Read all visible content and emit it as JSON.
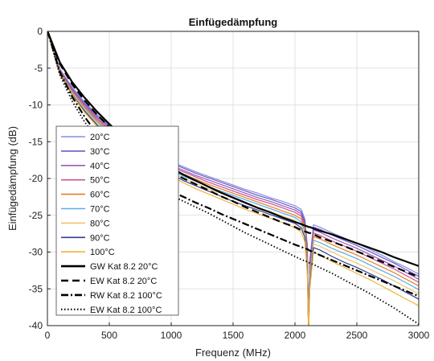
{
  "chart_data": {
    "type": "line",
    "title": "Einfügedämpfung",
    "xlabel": "Frequenz (MHz)",
    "ylabel": "Einfügedämpfung (dB)",
    "xlim": [
      0,
      3000
    ],
    "ylim": [
      -40,
      0
    ],
    "xticks": [
      0,
      500,
      1000,
      1500,
      2000,
      2500,
      3000
    ],
    "yticks": [
      0,
      -5,
      -10,
      -15,
      -20,
      -25,
      -30,
      -35,
      -40
    ],
    "xtick_labels": [
      "0",
      "500",
      "1000",
      "1500",
      "2000",
      "2500",
      "3000"
    ],
    "ytick_labels": [
      "0",
      "-5",
      "-10",
      "-15",
      "-20",
      "-25",
      "-30",
      "-35",
      "-40"
    ],
    "grid": true,
    "legend_position": "bottom-left",
    "x": [
      1,
      100,
      200,
      300,
      400,
      500,
      600,
      700,
      800,
      900,
      1000,
      1100,
      1200,
      1300,
      1400,
      1500,
      1600,
      1700,
      1800,
      1900,
      2000,
      2050,
      2080,
      2100,
      2110,
      2120,
      2150,
      2200,
      2300,
      2400,
      2500,
      2600,
      2700,
      2800,
      2900,
      3000
    ],
    "series": [
      {
        "name": "20°C",
        "color": "#8a8fd6",
        "style": "solid",
        "width": 1.2,
        "values": [
          0,
          -5.1,
          -7.6,
          -9.6,
          -11.3,
          -12.7,
          -14.0,
          -15.1,
          -16.1,
          -16.9,
          -17.7,
          -18.4,
          -19.1,
          -19.7,
          -20.3,
          -20.9,
          -21.5,
          -22.0,
          -22.6,
          -23.1,
          -23.7,
          -24.2,
          -25.5,
          -29.0,
          -41.0,
          -31.0,
          -26.3,
          -26.6,
          -27.4,
          -28.1,
          -28.8,
          -29.6,
          -30.4,
          -31.3,
          -32.1,
          -33.0
        ]
      },
      {
        "name": "30°C",
        "color": "#6a5acd",
        "style": "solid",
        "width": 1.2,
        "values": [
          0,
          -5.2,
          -7.8,
          -9.8,
          -11.5,
          -12.9,
          -14.2,
          -15.3,
          -16.3,
          -17.1,
          -17.9,
          -18.6,
          -19.3,
          -19.9,
          -20.5,
          -21.1,
          -21.7,
          -22.3,
          -22.8,
          -23.4,
          -24.0,
          -24.5,
          -25.8,
          -29.5,
          -41.0,
          -31.5,
          -26.6,
          -26.9,
          -27.7,
          -28.4,
          -29.1,
          -29.9,
          -30.7,
          -31.5,
          -32.4,
          -33.3
        ]
      },
      {
        "name": "40°C",
        "color": "#9b59b6",
        "style": "solid",
        "width": 1.2,
        "values": [
          0,
          -5.3,
          -7.9,
          -9.9,
          -11.7,
          -13.1,
          -14.4,
          -15.5,
          -16.5,
          -17.4,
          -18.2,
          -18.9,
          -19.6,
          -20.2,
          -20.8,
          -21.4,
          -22.0,
          -22.6,
          -23.1,
          -23.7,
          -24.3,
          -24.8,
          -26.1,
          -30.0,
          -41.0,
          -32.0,
          -27.0,
          -27.3,
          -28.1,
          -28.8,
          -29.5,
          -30.3,
          -31.1,
          -31.9,
          -32.8,
          -33.7
        ]
      },
      {
        "name": "50°C",
        "color": "#c7548f",
        "style": "solid",
        "width": 1.2,
        "values": [
          0,
          -5.4,
          -8.0,
          -10.1,
          -11.9,
          -13.3,
          -14.6,
          -15.7,
          -16.7,
          -17.6,
          -18.4,
          -19.1,
          -19.8,
          -20.5,
          -21.1,
          -21.7,
          -22.3,
          -22.9,
          -23.4,
          -24.0,
          -24.6,
          -25.1,
          -26.4,
          -30.5,
          -41.0,
          -32.5,
          -27.4,
          -27.7,
          -28.5,
          -29.2,
          -29.9,
          -30.7,
          -31.5,
          -32.3,
          -33.2,
          -34.1
        ]
      },
      {
        "name": "60°C",
        "color": "#e67e22",
        "style": "solid",
        "width": 1.2,
        "values": [
          0,
          -5.5,
          -8.2,
          -10.3,
          -12.1,
          -13.5,
          -14.8,
          -15.9,
          -16.9,
          -17.8,
          -18.6,
          -19.4,
          -20.1,
          -20.8,
          -21.4,
          -22.0,
          -22.6,
          -23.2,
          -23.8,
          -24.4,
          -25.0,
          -25.5,
          -26.8,
          -31.0,
          -41.0,
          -33.0,
          -27.9,
          -28.2,
          -29.0,
          -29.7,
          -30.4,
          -31.2,
          -32.0,
          -32.8,
          -33.7,
          -34.6
        ]
      },
      {
        "name": "70°C",
        "color": "#5dade2",
        "style": "solid",
        "width": 1.2,
        "values": [
          0,
          -5.6,
          -8.3,
          -10.4,
          -12.3,
          -13.7,
          -15.0,
          -16.1,
          -17.1,
          -18.0,
          -18.9,
          -19.7,
          -20.4,
          -21.1,
          -21.7,
          -22.3,
          -22.9,
          -23.5,
          -24.1,
          -24.7,
          -25.3,
          -25.9,
          -27.2,
          -31.5,
          -41.0,
          -33.5,
          -28.4,
          -28.7,
          -29.5,
          -30.2,
          -30.9,
          -31.7,
          -32.5,
          -33.3,
          -34.2,
          -35.1
        ]
      },
      {
        "name": "80°C",
        "color": "#ecc46e",
        "style": "solid",
        "width": 1.2,
        "values": [
          0,
          -5.7,
          -8.4,
          -10.6,
          -12.5,
          -13.9,
          -15.2,
          -16.3,
          -17.3,
          -18.3,
          -19.2,
          -20.0,
          -20.7,
          -21.4,
          -22.0,
          -22.7,
          -23.3,
          -23.9,
          -24.5,
          -25.1,
          -25.7,
          -26.3,
          -27.6,
          -32.0,
          -41.0,
          -34.0,
          -28.9,
          -29.2,
          -30.0,
          -30.8,
          -31.5,
          -32.3,
          -33.1,
          -33.9,
          -34.8,
          -35.7
        ]
      },
      {
        "name": "90°C",
        "color": "#2c3e91",
        "style": "solid",
        "width": 1.2,
        "values": [
          0,
          -5.8,
          -8.6,
          -10.8,
          -12.7,
          -14.1,
          -15.4,
          -16.5,
          -17.5,
          -18.5,
          -19.4,
          -20.3,
          -21.0,
          -21.7,
          -22.4,
          -23.1,
          -23.7,
          -24.3,
          -24.9,
          -25.5,
          -26.1,
          -26.7,
          -28.0,
          -32.5,
          -41.0,
          -34.5,
          -29.4,
          -29.7,
          -30.6,
          -31.4,
          -32.1,
          -32.9,
          -33.7,
          -34.6,
          -35.5,
          -36.4
        ]
      },
      {
        "name": "100°C",
        "color": "#f0b33a",
        "style": "solid",
        "width": 1.2,
        "values": [
          0,
          -5.9,
          -8.7,
          -11.0,
          -12.9,
          -14.3,
          -15.6,
          -16.7,
          -17.8,
          -18.8,
          -19.7,
          -20.6,
          -21.4,
          -22.1,
          -22.8,
          -23.5,
          -24.2,
          -24.8,
          -25.4,
          -26.0,
          -26.7,
          -27.3,
          -28.6,
          -33.0,
          -41.0,
          -35.0,
          -30.0,
          -30.4,
          -31.3,
          -32.1,
          -32.9,
          -33.7,
          -34.6,
          -35.5,
          -36.4,
          -37.3
        ]
      },
      {
        "name": "GW Kat 8.2 20°C",
        "color": "#000000",
        "style": "solid",
        "width": 2.2,
        "values": [
          0,
          -4.2,
          -6.9,
          -9.0,
          -10.9,
          -12.6,
          -14.1,
          -15.4,
          -16.6,
          -17.6,
          -18.6,
          -19.5,
          -20.3,
          -21.1,
          -21.9,
          -22.6,
          -23.3,
          -24.0,
          -24.6,
          -25.3,
          -25.9,
          -26.2,
          -26.4,
          -26.5,
          -26.6,
          -26.6,
          -26.8,
          -27.1,
          -27.6,
          -28.2,
          -28.8,
          -29.4,
          -30.0,
          -30.7,
          -31.3,
          -31.9
        ]
      },
      {
        "name": "EW Kat 8.2 20°C",
        "color": "#000000",
        "style": "dash",
        "width": 2.2,
        "values": [
          0,
          -4.4,
          -7.2,
          -9.4,
          -11.3,
          -13.0,
          -14.5,
          -15.8,
          -17.0,
          -18.1,
          -19.1,
          -20.0,
          -20.8,
          -21.6,
          -22.4,
          -23.1,
          -23.9,
          -24.6,
          -25.3,
          -26.0,
          -26.6,
          -27.0,
          -27.2,
          -27.3,
          -27.4,
          -27.4,
          -27.6,
          -28.0,
          -28.6,
          -29.2,
          -29.9,
          -30.6,
          -31.3,
          -32.0,
          -32.7,
          -33.4
        ]
      },
      {
        "name": "RW Kat 8.2 100°C",
        "color": "#000000",
        "style": "dashdot",
        "width": 2.2,
        "values": [
          0,
          -5.5,
          -8.9,
          -11.6,
          -13.9,
          -15.8,
          -17.3,
          -18.6,
          -19.8,
          -20.8,
          -21.7,
          -22.5,
          -23.3,
          -24.0,
          -24.8,
          -25.5,
          -26.2,
          -26.9,
          -27.6,
          -28.3,
          -29.0,
          -29.3,
          -29.5,
          -29.6,
          -29.7,
          -29.8,
          -30.0,
          -30.4,
          -31.1,
          -31.8,
          -32.5,
          -33.2,
          -33.9,
          -34.6,
          -35.3,
          -36.0
        ]
      },
      {
        "name": "EW Kat 8.2 100°C",
        "color": "#000000",
        "style": "dot",
        "width": 1.8,
        "values": [
          0,
          -5.9,
          -9.5,
          -12.3,
          -14.6,
          -16.5,
          -18.0,
          -19.3,
          -20.4,
          -21.4,
          -22.3,
          -23.1,
          -23.9,
          -24.7,
          -25.6,
          -26.5,
          -27.4,
          -28.2,
          -29.0,
          -29.8,
          -30.6,
          -31.0,
          -31.2,
          -31.3,
          -31.4,
          -31.5,
          -31.7,
          -32.1,
          -32.9,
          -33.8,
          -34.7,
          -35.6,
          -36.6,
          -37.6,
          -38.7,
          -39.8
        ]
      }
    ]
  }
}
